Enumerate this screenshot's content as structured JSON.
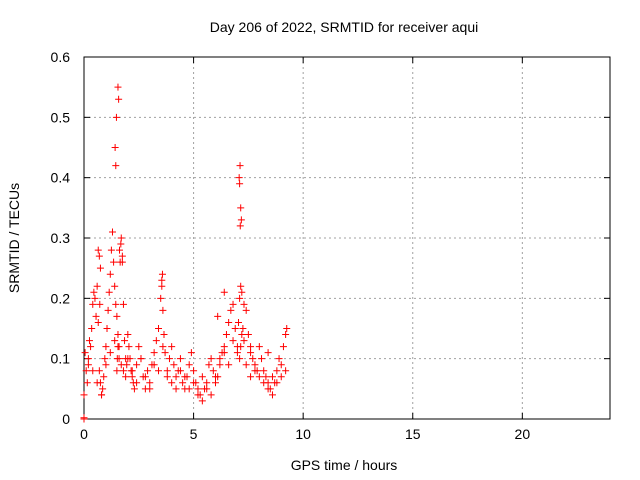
{
  "chart_data": {
    "type": "scatter",
    "title": "Day 206 of 2022, SRMTID for receiver aqui",
    "xlabel": "GPS time / hours",
    "ylabel": "SRMTID / TECUs",
    "xlim": [
      0,
      24
    ],
    "ylim": [
      0,
      0.6
    ],
    "xticks": [
      0,
      5,
      10,
      15,
      20
    ],
    "xtick_labels": [
      "0",
      "5",
      "10",
      "15",
      "20"
    ],
    "yticks": [
      0,
      0.1,
      0.2,
      0.3,
      0.4,
      0.5,
      0.6
    ],
    "ytick_labels": [
      "0",
      "0.1",
      "0.2",
      "0.3",
      "0.4",
      "0.5",
      "0.6"
    ],
    "grid": true,
    "marker": "+",
    "color": "#ff0000",
    "series": [
      {
        "name": "SRMTID",
        "x": [
          0.0,
          0.05,
          0.1,
          0.15,
          0.2,
          0.25,
          0.3,
          0.35,
          0.4,
          0.45,
          0.5,
          0.55,
          0.6,
          0.65,
          0.7,
          0.75,
          0.8,
          0.85,
          0.9,
          0.95,
          1.0,
          1.05,
          1.1,
          1.15,
          1.2,
          1.25,
          1.3,
          1.35,
          1.4,
          1.45,
          1.5,
          1.55,
          1.6,
          1.65,
          1.7,
          1.75,
          1.8,
          1.85,
          1.9,
          1.95,
          2.0,
          2.05,
          2.1,
          2.15,
          2.2,
          2.25,
          2.3,
          2.4,
          2.5,
          2.6,
          2.7,
          2.8,
          2.9,
          3.0,
          3.1,
          3.2,
          3.3,
          3.4,
          3.5,
          3.55,
          3.6,
          3.65,
          3.7,
          3.8,
          3.9,
          4.0,
          4.1,
          4.2,
          4.3,
          4.4,
          4.5,
          4.6,
          4.7,
          4.8,
          4.9,
          5.0,
          5.1,
          5.2,
          5.3,
          5.4,
          5.5,
          5.6,
          5.7,
          5.8,
          5.9,
          6.0,
          6.1,
          6.2,
          6.3,
          6.4,
          6.5,
          6.6,
          6.7,
          6.8,
          6.9,
          7.0,
          7.05,
          7.1,
          7.15,
          7.2,
          7.3,
          7.4,
          7.5,
          7.6,
          7.7,
          7.8,
          7.9,
          8.0,
          8.1,
          8.2,
          8.3,
          8.4,
          8.5,
          8.6,
          8.7,
          8.8,
          8.9,
          9.0,
          9.1,
          9.2,
          9.25,
          0.0,
          0.0,
          0.2,
          0.4,
          0.6,
          0.8,
          1.0,
          1.2,
          1.4,
          1.5,
          1.52,
          1.55,
          1.6,
          1.7,
          1.8,
          1.9,
          2.0,
          2.2,
          2.4,
          2.6,
          2.8,
          3.0,
          3.2,
          3.4,
          3.6,
          3.8,
          4.0,
          4.2,
          4.4,
          4.6,
          4.8,
          5.0,
          5.2,
          5.4,
          5.6,
          5.8,
          6.0,
          6.2,
          6.4,
          6.6,
          6.8,
          7.0,
          7.1,
          7.15,
          7.2,
          7.25,
          7.3,
          7.4,
          7.6,
          7.8,
          8.0,
          8.2,
          8.4,
          8.6,
          8.8,
          9.0,
          9.2,
          0.7,
          0.75,
          1.45,
          1.48,
          1.55,
          1.58,
          3.55,
          3.58,
          7.1,
          7.12,
          7.15,
          7.08,
          7.18,
          7.13,
          0.65,
          0.72,
          1.62,
          1.68,
          1.75,
          1.42,
          6.1,
          6.4,
          7.6,
          8.4
        ],
        "y": [
          0.04,
          0.11,
          0.08,
          0.06,
          0.09,
          0.13,
          0.12,
          0.15,
          0.19,
          0.21,
          0.2,
          0.17,
          0.22,
          0.16,
          0.08,
          0.06,
          0.04,
          0.05,
          0.07,
          0.1,
          0.12,
          0.15,
          0.18,
          0.21,
          0.24,
          0.28,
          0.31,
          0.26,
          0.22,
          0.19,
          0.17,
          0.14,
          0.12,
          0.26,
          0.3,
          0.27,
          0.19,
          0.13,
          0.1,
          0.09,
          0.14,
          0.12,
          0.1,
          0.08,
          0.07,
          0.06,
          0.05,
          0.09,
          0.12,
          0.1,
          0.07,
          0.05,
          0.08,
          0.06,
          0.09,
          0.11,
          0.13,
          0.15,
          0.2,
          0.23,
          0.18,
          0.14,
          0.11,
          0.08,
          0.1,
          0.12,
          0.09,
          0.07,
          0.08,
          0.1,
          0.06,
          0.05,
          0.07,
          0.09,
          0.11,
          0.08,
          0.06,
          0.05,
          0.04,
          0.07,
          0.05,
          0.06,
          0.09,
          0.1,
          0.08,
          0.06,
          0.07,
          0.09,
          0.11,
          0.12,
          0.14,
          0.16,
          0.18,
          0.19,
          0.15,
          0.12,
          0.16,
          0.2,
          0.22,
          0.21,
          0.19,
          0.18,
          0.14,
          0.11,
          0.1,
          0.09,
          0.08,
          0.12,
          0.1,
          0.08,
          0.07,
          0.06,
          0.05,
          0.07,
          0.06,
          0.08,
          0.1,
          0.09,
          0.12,
          0.14,
          0.15,
          0.0,
          0.002,
          0.1,
          0.08,
          0.06,
          0.04,
          0.09,
          0.11,
          0.13,
          0.08,
          0.1,
          0.12,
          0.1,
          0.09,
          0.08,
          0.07,
          0.1,
          0.08,
          0.06,
          0.1,
          0.07,
          0.05,
          0.09,
          0.08,
          0.12,
          0.07,
          0.06,
          0.05,
          0.08,
          0.07,
          0.05,
          0.06,
          0.04,
          0.03,
          0.05,
          0.04,
          0.07,
          0.1,
          0.11,
          0.09,
          0.13,
          0.11,
          0.1,
          0.12,
          0.14,
          0.15,
          0.13,
          0.09,
          0.07,
          0.08,
          0.07,
          0.06,
          0.05,
          0.04,
          0.06,
          0.07,
          0.08,
          0.27,
          0.25,
          0.42,
          0.5,
          0.55,
          0.53,
          0.22,
          0.24,
          0.39,
          0.42,
          0.35,
          0.4,
          0.33,
          0.32,
          0.28,
          0.19,
          0.28,
          0.29,
          0.26,
          0.45,
          0.17,
          0.21,
          0.12,
          0.11
        ]
      }
    ]
  }
}
